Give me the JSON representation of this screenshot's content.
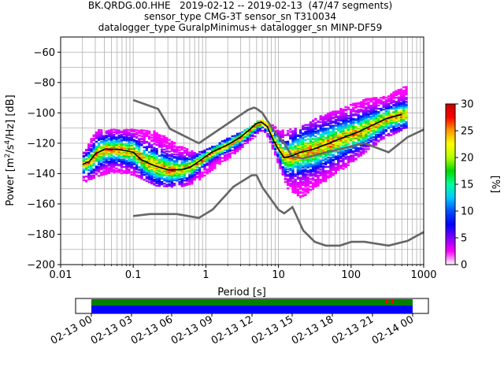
{
  "title_lines": [
    "BK.QRDG.00.HHE   2019-02-12 -- 2019-02-13  (47/47 segments)",
    "sensor_type CMG-3T sensor_sn T310034",
    "datalogger_type GuralpMinimus+ datalogger_sn MINP-DF59"
  ],
  "chart_data": {
    "type": "heatmap",
    "xlabel": "Period [s]",
    "ylabel": "Power [m^2/s^4/Hz] [dB]",
    "xscale": "log",
    "xlim": [
      0.01,
      1000
    ],
    "ylim": [
      -200,
      -50
    ],
    "x_tick_labels": [
      "0.01",
      "0.1",
      "1",
      "10",
      "100",
      "1000"
    ],
    "y_tick_labels": [
      "-200",
      "-180",
      "-160",
      "-140",
      "-120",
      "-100",
      "-80",
      "-60"
    ],
    "grid": true,
    "colorbar": {
      "label": "[%]",
      "range": [
        0,
        30
      ],
      "tick_labels": [
        "0",
        "5",
        "10",
        "15",
        "20",
        "25",
        "30"
      ],
      "colormap": [
        "#ffffff",
        "#ff00ff",
        "#7f00ff",
        "#0000ff",
        "#0050ff",
        "#00c8ff",
        "#00ff9c",
        "#00d800",
        "#b4ff00",
        "#ffff00",
        "#ff9c00",
        "#ff0000",
        "#c80000"
      ]
    },
    "new_high_noise_model": {
      "period": [
        0.1,
        0.22,
        0.32,
        0.8,
        3.8,
        4.6,
        5.0,
        6.0,
        7.0,
        10.0,
        12.0,
        15.6,
        21.9,
        31.6,
        45.0,
        70.0,
        101.0,
        154.0,
        328.0,
        600.0,
        1000.0
      ],
      "power": [
        -91.5,
        -97.4,
        -110.5,
        -120.0,
        -98.0,
        -96.5,
        -97.2,
        -100.0,
        -105.0,
        -116.0,
        -120.0,
        -129.0,
        -130.0,
        -128.0,
        -126.0,
        -124.0,
        -122.0,
        -120.0,
        -126.0,
        -116.0,
        -111.0
      ]
    },
    "new_low_noise_model": {
      "period": [
        0.1,
        0.17,
        0.4,
        0.8,
        1.24,
        2.4,
        4.3,
        5.0,
        6.0,
        10.0,
        12.0,
        15.6,
        21.9,
        31.6,
        45.0,
        70.0,
        101.0,
        154.0,
        328.0,
        600.0,
        1000.0
      ],
      "power": [
        -168.0,
        -166.7,
        -166.7,
        -169.2,
        -163.7,
        -148.6,
        -141.1,
        -141.1,
        -149.0,
        -163.8,
        -166.2,
        -162.1,
        -177.5,
        -185.0,
        -187.5,
        -187.5,
        -185.0,
        -185.0,
        -187.5,
        -184.4,
        -178.5
      ]
    },
    "mean_curve": {
      "period": [
        0.02,
        0.025,
        0.03,
        0.04,
        0.06,
        0.08,
        0.1,
        0.13,
        0.2,
        0.3,
        0.45,
        0.6,
        0.8,
        1.2,
        2.0,
        3.0,
        4.0,
        5.0,
        5.8,
        7.0,
        8.5,
        10.0,
        12.0,
        15.0,
        20.0,
        30.0,
        50.0,
        80.0,
        120.0,
        200.0,
        300.0,
        420.0,
        500.0
      ],
      "power": [
        -134.0,
        -132.0,
        -127.0,
        -124.0,
        -124.0,
        -125.0,
        -126.0,
        -131.0,
        -135.0,
        -137.5,
        -137.5,
        -136.0,
        -132.0,
        -126.0,
        -121.0,
        -116.0,
        -111.0,
        -107.0,
        -106.0,
        -109.0,
        -118.0,
        -124.0,
        -129.5,
        -128.5,
        -126.0,
        -124.0,
        -120.0,
        -116.0,
        -113.0,
        -108.0,
        -104.0,
        -102.0,
        -101.0
      ]
    },
    "ppsd_band": {
      "period": [
        0.02,
        0.03,
        0.05,
        0.1,
        0.2,
        0.4,
        0.7,
        1.0,
        2.0,
        4.0,
        5.5,
        7.0,
        10.0,
        13.0,
        20.0,
        40.0,
        80.0,
        150.0,
        300.0,
        450.0,
        600.0
      ],
      "power_low": [
        -146.0,
        -142.0,
        -139.0,
        -141.0,
        -148.0,
        -149.0,
        -146.0,
        -140.0,
        -130.0,
        -118.0,
        -112.0,
        -116.0,
        -136.0,
        -150.0,
        -156.0,
        -146.0,
        -136.0,
        -126.0,
        -116.0,
        -112.0,
        -109.0
      ],
      "power_high": [
        -126.0,
        -111.0,
        -111.0,
        -111.0,
        -112.0,
        -121.0,
        -126.0,
        -124.0,
        -116.0,
        -109.0,
        -104.0,
        -106.0,
        -111.0,
        -111.0,
        -109.0,
        -101.0,
        -96.0,
        -91.0,
        -89.0,
        -84.0,
        -82.0
      ]
    }
  },
  "timeline": {
    "tick_labels": [
      "02-13 00",
      "02-13 03",
      "02-13 06",
      "02-13 09",
      "02-13 12",
      "02-13 15",
      "02-13 18",
      "02-13 21",
      "02-14 00"
    ],
    "bar_colors": {
      "coverage": "#0000ff",
      "data": "#008000",
      "gap_mark": "#ff0000"
    }
  }
}
